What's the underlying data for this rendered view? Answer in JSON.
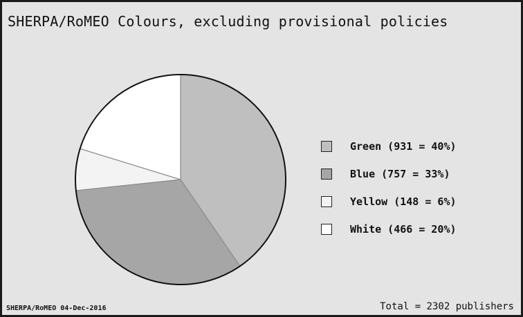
{
  "chart_data": {
    "type": "pie",
    "title": "SHERPA/RoMEO Colours, excluding provisional policies",
    "slices": [
      {
        "label": "Green (931 = 40%)",
        "name": "Green",
        "value": 931,
        "percent": 40,
        "color": "#bfbfbf"
      },
      {
        "label": "Blue (757 = 33%)",
        "name": "Blue",
        "value": 757,
        "percent": 33,
        "color": "#a6a6a6"
      },
      {
        "label": "Yellow (148 = 6%)",
        "name": "Yellow",
        "value": 148,
        "percent": 6,
        "color": "#f3f3f3"
      },
      {
        "label": "White (466 = 20%)",
        "name": "White",
        "value": 466,
        "percent": 20,
        "color": "#ffffff"
      }
    ],
    "legend_position": "right",
    "source_note": "SHERPA/RoMEO 04-Dec-2016",
    "total_note": "Total = 2302 publishers"
  }
}
